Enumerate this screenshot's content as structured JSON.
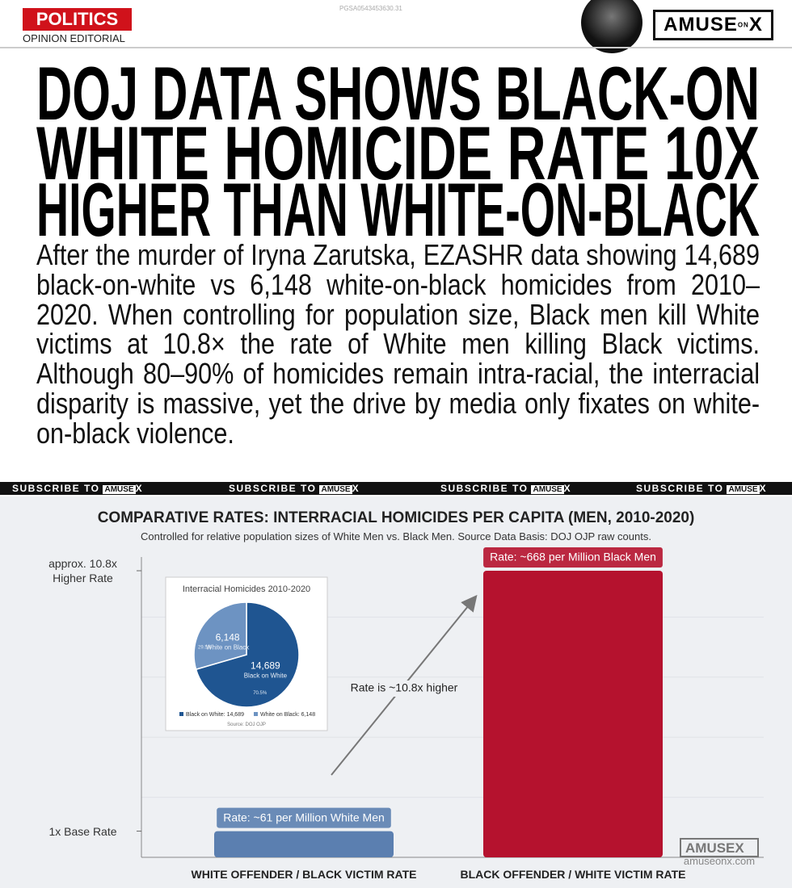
{
  "header": {
    "section": "POLITICS",
    "kicker": "OPINION EDITORIAL",
    "code": "PGSA0543453630.31",
    "logo": {
      "word": "AMUSE",
      "small": "ON",
      "mark": "X"
    }
  },
  "headline": {
    "lines": [
      "DOJ DATA SHOWS BLACK-ON",
      "WHITE HOMICIDE RATE 10X",
      "HIGHER THAN WHITE-ON-BLACK"
    ]
  },
  "body": "After the murder of Iryna Zarutska, EZASHR data showing 14,689 black-on-white vs 6,148 white-on-black homicides from 2010–2020. When controlling for population size, Black men kill White victims at 10.8× the rate of White men killing Black victims. Although 80–90% of homicides remain intra-racial, the interracial disparity is massive, yet the drive by media only fixates on white-on-black violence.",
  "banner": [
    {
      "text": "SUBSCRIBE TO",
      "logo": "AMUSE",
      "mark": "X"
    },
    {
      "text": "SUBSCRIBE TO",
      "logo": "AMUSE",
      "mark": "X"
    },
    {
      "text": "SUBSCRIBE TO",
      "logo": "AMUSE",
      "mark": "X"
    },
    {
      "text": "SUBSCRIBE TO",
      "logo": "AMUSE",
      "mark": "X"
    }
  ],
  "chart_data": [
    {
      "type": "bar",
      "title": "COMPARATIVE RATES: INTERRACIAL HOMICIDES PER CAPITA (MEN, 2010-2020)",
      "subtitle": "Controlled for relative population sizes of White Men vs. Black Men. Source Data Basis: DOJ OJP raw counts.",
      "categories": [
        "WHITE OFFENDER / BLACK VICTIM RATE",
        "BLACK OFFENDER / WHITE VICTIM RATE"
      ],
      "values": [
        61,
        668
      ],
      "value_labels": [
        "Rate: ~61 per Million White Men",
        "Rate: ~668 per Million Black Men"
      ],
      "colors": [
        "#5b7fb0",
        "#b5122e"
      ],
      "ylim": [
        0,
        700
      ],
      "yticks": [
        {
          "value": 61,
          "label": "1x Base Rate"
        },
        {
          "value": 668,
          "label": "approx. 10.8x Higher Rate"
        }
      ],
      "grid": true,
      "annotation": "Rate is ~10.8x higher"
    },
    {
      "type": "pie",
      "title": "Interracial Homicides 2010-2020",
      "categories": [
        "Black on White: 14,689",
        "White on Black: 6,148"
      ],
      "values": [
        14689,
        6148
      ],
      "value_labels": [
        "14,689",
        "6,148"
      ],
      "slice_labels": [
        "Black on White",
        "White on Black"
      ],
      "percent_labels": [
        "70.5%",
        "29.5%"
      ],
      "colors": [
        "#1f5591",
        "#6d93c2"
      ],
      "source": "Source: DOJ OJP"
    }
  ],
  "watermark": {
    "logo": "AMUSE",
    "mark": "X",
    "url": "amuseonx.com"
  }
}
